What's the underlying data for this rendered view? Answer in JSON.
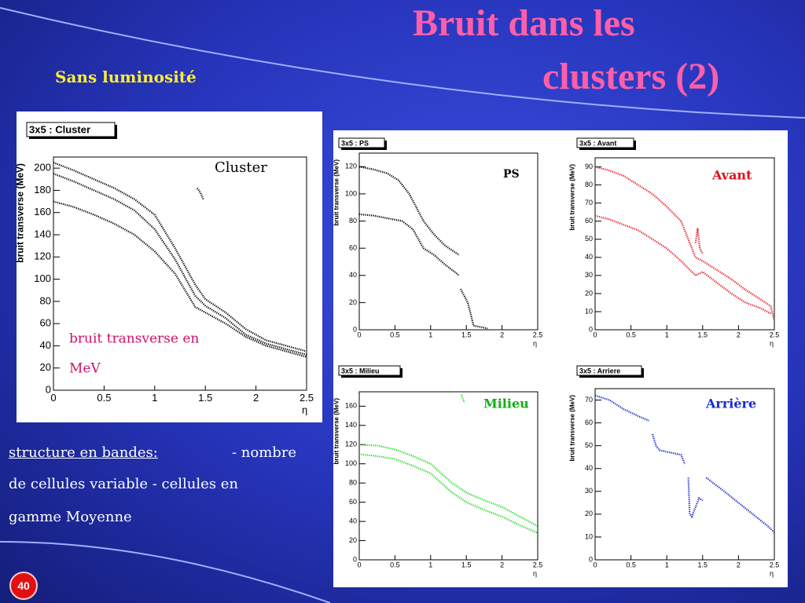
{
  "header": {
    "title_lines": [
      "Bruit dans les",
      "clusters (2)"
    ],
    "subtitle": "Sans luminosité"
  },
  "body": {
    "lines": [
      "structure en bandes:",
      "- nombre",
      "de cellules variable  - cellules en",
      "gamme Moyenne"
    ]
  },
  "page_number": "40",
  "chart_data": [
    {
      "type": "line",
      "title": "3x5 : Cluster",
      "y_label": "bruit transverse (MeV)",
      "x_label": "η",
      "annotations": [
        {
          "text": "Cluster",
          "color": "#000000"
        },
        {
          "text": "bruit transverse en",
          "color": "#d0106a"
        },
        {
          "text": "MeV",
          "color": "#d0106a"
        }
      ],
      "xlim": [
        0,
        2.5
      ],
      "ylim": [
        0,
        210
      ],
      "xticks": [
        0,
        0.5,
        1,
        1.5,
        2,
        2.5
      ],
      "yticks": [
        0,
        20,
        40,
        60,
        80,
        100,
        120,
        140,
        160,
        180,
        200
      ],
      "series": [
        {
          "color": "#000000",
          "x": [
            0,
            0.2,
            0.4,
            0.6,
            0.8,
            1.0,
            1.2,
            1.4,
            1.5,
            1.7,
            1.9,
            2.1,
            2.3,
            2.5
          ],
          "values": [
            205,
            198,
            190,
            182,
            172,
            158,
            128,
            95,
            82,
            70,
            55,
            45,
            40,
            35
          ]
        },
        {
          "color": "#000000",
          "x": [
            0,
            0.2,
            0.4,
            0.6,
            0.8,
            1.0,
            1.2,
            1.4,
            1.5,
            1.7,
            1.9,
            2.1,
            2.3,
            2.5
          ],
          "values": [
            195,
            188,
            180,
            172,
            162,
            145,
            118,
            85,
            76,
            65,
            50,
            42,
            37,
            32
          ]
        },
        {
          "color": "#000000",
          "x": [
            0,
            0.2,
            0.4,
            0.6,
            0.8,
            1.0,
            1.2,
            1.4,
            1.5,
            1.7,
            1.9,
            2.1,
            2.3,
            2.5
          ],
          "values": [
            170,
            165,
            158,
            150,
            140,
            125,
            105,
            75,
            70,
            60,
            48,
            40,
            35,
            30
          ]
        },
        {
          "color": "#000000",
          "x": [
            1.42,
            1.45,
            1.48
          ],
          "values": [
            182,
            178,
            172
          ]
        }
      ]
    },
    {
      "type": "line",
      "title": "3x5 : PS",
      "y_label": "bruit transverse (MeV)",
      "x_label": "η",
      "annotations": [
        {
          "text": "PS",
          "color": "#000000"
        }
      ],
      "xlim": [
        0,
        2.5
      ],
      "ylim": [
        0,
        130
      ],
      "xticks": [
        0,
        0.5,
        1,
        1.5,
        2,
        2.5
      ],
      "yticks": [
        0,
        20,
        40,
        60,
        80,
        100,
        120
      ],
      "series": [
        {
          "color": "#000000",
          "x": [
            0,
            0.2,
            0.4,
            0.55,
            0.7,
            0.9,
            1.05,
            1.2,
            1.4
          ],
          "values": [
            120,
            118,
            115,
            110,
            100,
            80,
            70,
            62,
            55
          ]
        },
        {
          "color": "#000000",
          "x": [
            0,
            0.2,
            0.4,
            0.6,
            0.75,
            0.9,
            1.05,
            1.2,
            1.4
          ],
          "values": [
            85,
            84,
            82,
            80,
            74,
            60,
            55,
            48,
            40
          ]
        },
        {
          "color": "#000000",
          "x": [
            1.42,
            1.47,
            1.52,
            1.56,
            1.6,
            1.7,
            1.8
          ],
          "values": [
            30,
            25,
            20,
            12,
            3,
            2,
            1
          ]
        }
      ]
    },
    {
      "type": "line",
      "title": "3x5 : Avant",
      "y_label": "bruit transverse (MeV)",
      "x_label": "η",
      "annotations": [
        {
          "text": "Avant",
          "color": "#e0101a"
        }
      ],
      "xlim": [
        0,
        2.5
      ],
      "ylim": [
        0,
        95
      ],
      "xticks": [
        0,
        0.5,
        1,
        1.5,
        2,
        2.5
      ],
      "yticks": [
        0,
        10,
        20,
        30,
        40,
        50,
        60,
        70,
        80,
        90
      ],
      "series": [
        {
          "color": "#e8141c",
          "x": [
            0,
            0.2,
            0.4,
            0.6,
            0.8,
            1.0,
            1.2,
            1.4,
            1.5,
            1.7,
            1.9,
            2.1,
            2.3,
            2.45,
            2.5
          ],
          "values": [
            90,
            88,
            85,
            80,
            75,
            68,
            60,
            40,
            38,
            33,
            28,
            22,
            17,
            13,
            5
          ]
        },
        {
          "color": "#e8141c",
          "x": [
            0,
            0.2,
            0.4,
            0.6,
            0.8,
            1.0,
            1.2,
            1.4,
            1.5,
            1.7,
            1.9,
            2.1,
            2.3,
            2.45
          ],
          "values": [
            63,
            61,
            58,
            55,
            50,
            45,
            38,
            30,
            32,
            26,
            20,
            15,
            12,
            9
          ]
        },
        {
          "color": "#e8141c",
          "x": [
            1.4,
            1.43,
            1.46,
            1.5
          ],
          "values": [
            48,
            56,
            45,
            42
          ]
        }
      ]
    },
    {
      "type": "line",
      "title": "3x5 : Milieu",
      "y_label": "bruit transverse (MeV)",
      "x_label": "η",
      "annotations": [
        {
          "text": "Milieu",
          "color": "#10b010"
        }
      ],
      "xlim": [
        0,
        2.5
      ],
      "ylim": [
        0,
        175
      ],
      "xticks": [
        0,
        0.5,
        1,
        1.5,
        2,
        2.5
      ],
      "yticks": [
        0,
        20,
        40,
        60,
        80,
        100,
        120,
        140,
        160
      ],
      "series": [
        {
          "color": "#22dd22",
          "x": [
            0,
            0.25,
            0.5,
            0.75,
            1.0,
            1.3,
            1.5,
            1.75,
            2.0,
            2.25,
            2.5
          ],
          "values": [
            120,
            119,
            115,
            108,
            100,
            80,
            70,
            62,
            55,
            45,
            35
          ]
        },
        {
          "color": "#22dd22",
          "x": [
            0,
            0.25,
            0.5,
            0.75,
            1.0,
            1.3,
            1.5,
            1.75,
            2.0,
            2.25,
            2.5
          ],
          "values": [
            110,
            108,
            105,
            98,
            90,
            70,
            60,
            52,
            45,
            36,
            28
          ]
        },
        {
          "color": "#22dd22",
          "x": [
            1.43,
            1.45,
            1.47
          ],
          "values": [
            172,
            168,
            164
          ]
        }
      ]
    },
    {
      "type": "line",
      "title": "3x5 : Arriere",
      "y_label": "bruit transverse (MeV)",
      "x_label": "η",
      "annotations": [
        {
          "text": "Arrière",
          "color": "#1a2ad0"
        }
      ],
      "xlim": [
        0,
        2.5
      ],
      "ylim": [
        0,
        75
      ],
      "xticks": [
        0,
        0.5,
        1,
        1.5,
        2,
        2.5
      ],
      "yticks": [
        0,
        10,
        20,
        30,
        40,
        50,
        60,
        70
      ],
      "series": [
        {
          "color": "#1020d0",
          "x": [
            0,
            0.2,
            0.4,
            0.6,
            0.75
          ],
          "values": [
            72,
            70,
            66,
            63,
            61
          ]
        },
        {
          "color": "#1020d0",
          "x": [
            0.8,
            0.85,
            0.9,
            1.05,
            1.2,
            1.25
          ],
          "values": [
            55,
            50,
            48,
            47,
            46,
            42
          ]
        },
        {
          "color": "#1020d0",
          "x": [
            1.3,
            1.32,
            1.35,
            1.45,
            1.5
          ],
          "values": [
            36,
            20,
            19,
            27,
            26
          ]
        },
        {
          "color": "#1020d0",
          "x": [
            1.55,
            1.8,
            2.0,
            2.2,
            2.4,
            2.5
          ],
          "values": [
            36,
            30,
            25,
            20,
            15,
            12
          ]
        }
      ]
    }
  ]
}
